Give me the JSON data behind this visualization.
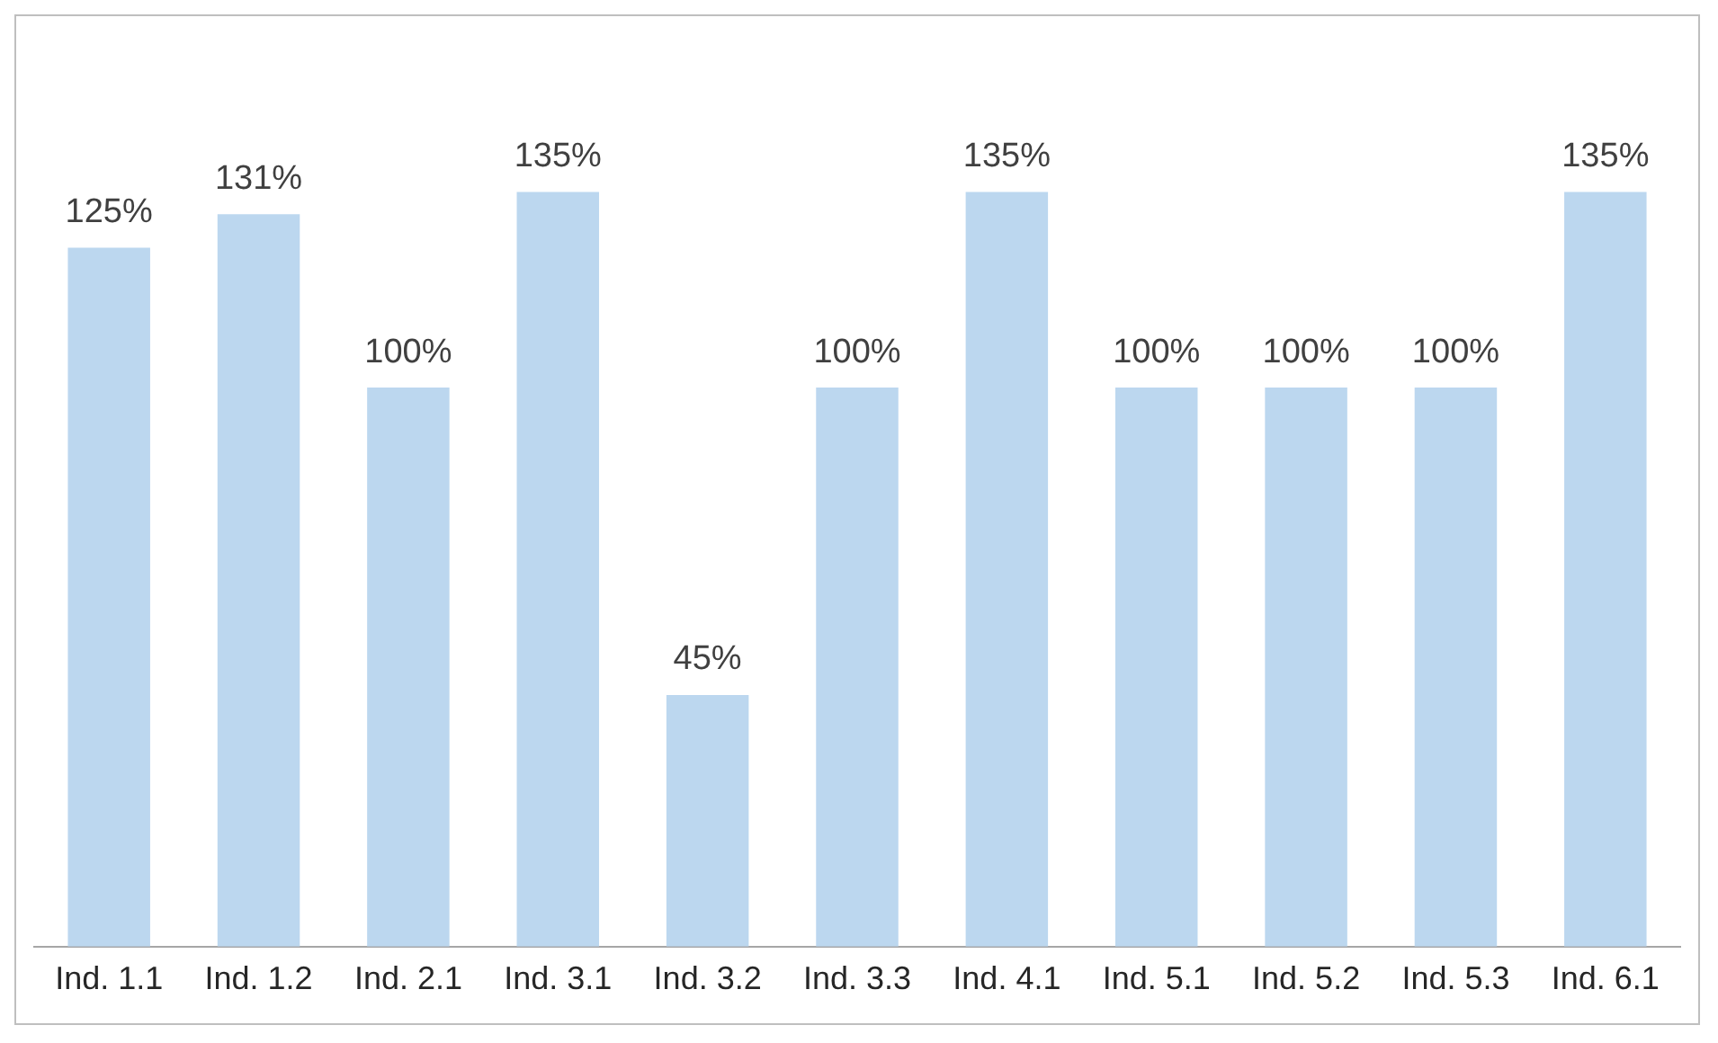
{
  "chart_data": {
    "type": "bar",
    "categories": [
      "Ind. 1.1",
      "Ind. 1.2",
      "Ind. 2.1",
      "Ind. 3.1",
      "Ind. 3.2",
      "Ind. 3.3",
      "Ind. 4.1",
      "Ind. 5.1",
      "Ind. 5.2",
      "Ind. 5.3",
      "Ind. 6.1"
    ],
    "values": [
      125,
      131,
      100,
      135,
      45,
      100,
      135,
      100,
      100,
      100,
      135
    ],
    "value_labels": [
      "125%",
      "131%",
      "100%",
      "135%",
      "45%",
      "100%",
      "135%",
      "100%",
      "100%",
      "100%",
      "135%"
    ],
    "color": "#bcd7ef",
    "grid": false,
    "legend": false
  }
}
